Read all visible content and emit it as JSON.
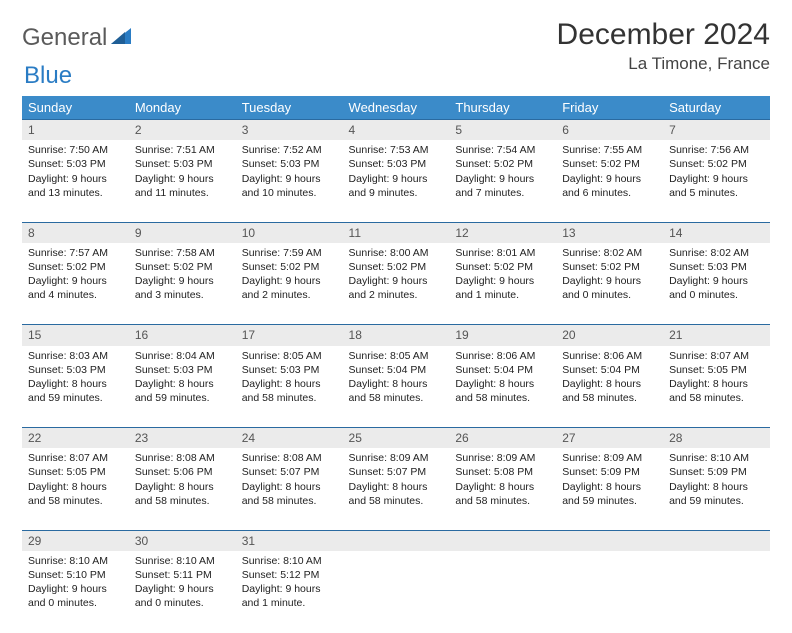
{
  "logo": {
    "text1": "General",
    "text2": "Blue"
  },
  "title": "December 2024",
  "location": "La Timone, France",
  "colors": {
    "header_bg": "#3b8bc9",
    "header_text": "#ffffff",
    "row_divider": "#2a6aa0",
    "daynum_bg": "#ebebeb",
    "daynum_text": "#555555",
    "body_text": "#222222",
    "logo_gray": "#5a5a5a",
    "logo_blue": "#2a7cc4"
  },
  "weekdays": [
    "Sunday",
    "Monday",
    "Tuesday",
    "Wednesday",
    "Thursday",
    "Friday",
    "Saturday"
  ],
  "weeks": [
    [
      {
        "n": "1",
        "sr": "7:50 AM",
        "ss": "5:03 PM",
        "dl": "9 hours and 13 minutes."
      },
      {
        "n": "2",
        "sr": "7:51 AM",
        "ss": "5:03 PM",
        "dl": "9 hours and 11 minutes."
      },
      {
        "n": "3",
        "sr": "7:52 AM",
        "ss": "5:03 PM",
        "dl": "9 hours and 10 minutes."
      },
      {
        "n": "4",
        "sr": "7:53 AM",
        "ss": "5:03 PM",
        "dl": "9 hours and 9 minutes."
      },
      {
        "n": "5",
        "sr": "7:54 AM",
        "ss": "5:02 PM",
        "dl": "9 hours and 7 minutes."
      },
      {
        "n": "6",
        "sr": "7:55 AM",
        "ss": "5:02 PM",
        "dl": "9 hours and 6 minutes."
      },
      {
        "n": "7",
        "sr": "7:56 AM",
        "ss": "5:02 PM",
        "dl": "9 hours and 5 minutes."
      }
    ],
    [
      {
        "n": "8",
        "sr": "7:57 AM",
        "ss": "5:02 PM",
        "dl": "9 hours and 4 minutes."
      },
      {
        "n": "9",
        "sr": "7:58 AM",
        "ss": "5:02 PM",
        "dl": "9 hours and 3 minutes."
      },
      {
        "n": "10",
        "sr": "7:59 AM",
        "ss": "5:02 PM",
        "dl": "9 hours and 2 minutes."
      },
      {
        "n": "11",
        "sr": "8:00 AM",
        "ss": "5:02 PM",
        "dl": "9 hours and 2 minutes."
      },
      {
        "n": "12",
        "sr": "8:01 AM",
        "ss": "5:02 PM",
        "dl": "9 hours and 1 minute."
      },
      {
        "n": "13",
        "sr": "8:02 AM",
        "ss": "5:02 PM",
        "dl": "9 hours and 0 minutes."
      },
      {
        "n": "14",
        "sr": "8:02 AM",
        "ss": "5:03 PM",
        "dl": "9 hours and 0 minutes."
      }
    ],
    [
      {
        "n": "15",
        "sr": "8:03 AM",
        "ss": "5:03 PM",
        "dl": "8 hours and 59 minutes."
      },
      {
        "n": "16",
        "sr": "8:04 AM",
        "ss": "5:03 PM",
        "dl": "8 hours and 59 minutes."
      },
      {
        "n": "17",
        "sr": "8:05 AM",
        "ss": "5:03 PM",
        "dl": "8 hours and 58 minutes."
      },
      {
        "n": "18",
        "sr": "8:05 AM",
        "ss": "5:04 PM",
        "dl": "8 hours and 58 minutes."
      },
      {
        "n": "19",
        "sr": "8:06 AM",
        "ss": "5:04 PM",
        "dl": "8 hours and 58 minutes."
      },
      {
        "n": "20",
        "sr": "8:06 AM",
        "ss": "5:04 PM",
        "dl": "8 hours and 58 minutes."
      },
      {
        "n": "21",
        "sr": "8:07 AM",
        "ss": "5:05 PM",
        "dl": "8 hours and 58 minutes."
      }
    ],
    [
      {
        "n": "22",
        "sr": "8:07 AM",
        "ss": "5:05 PM",
        "dl": "8 hours and 58 minutes."
      },
      {
        "n": "23",
        "sr": "8:08 AM",
        "ss": "5:06 PM",
        "dl": "8 hours and 58 minutes."
      },
      {
        "n": "24",
        "sr": "8:08 AM",
        "ss": "5:07 PM",
        "dl": "8 hours and 58 minutes."
      },
      {
        "n": "25",
        "sr": "8:09 AM",
        "ss": "5:07 PM",
        "dl": "8 hours and 58 minutes."
      },
      {
        "n": "26",
        "sr": "8:09 AM",
        "ss": "5:08 PM",
        "dl": "8 hours and 58 minutes."
      },
      {
        "n": "27",
        "sr": "8:09 AM",
        "ss": "5:09 PM",
        "dl": "8 hours and 59 minutes."
      },
      {
        "n": "28",
        "sr": "8:10 AM",
        "ss": "5:09 PM",
        "dl": "8 hours and 59 minutes."
      }
    ],
    [
      {
        "n": "29",
        "sr": "8:10 AM",
        "ss": "5:10 PM",
        "dl": "9 hours and 0 minutes."
      },
      {
        "n": "30",
        "sr": "8:10 AM",
        "ss": "5:11 PM",
        "dl": "9 hours and 0 minutes."
      },
      {
        "n": "31",
        "sr": "8:10 AM",
        "ss": "5:12 PM",
        "dl": "9 hours and 1 minute."
      },
      null,
      null,
      null,
      null
    ]
  ],
  "labels": {
    "sunrise": "Sunrise:",
    "sunset": "Sunset:",
    "daylight": "Daylight:"
  }
}
